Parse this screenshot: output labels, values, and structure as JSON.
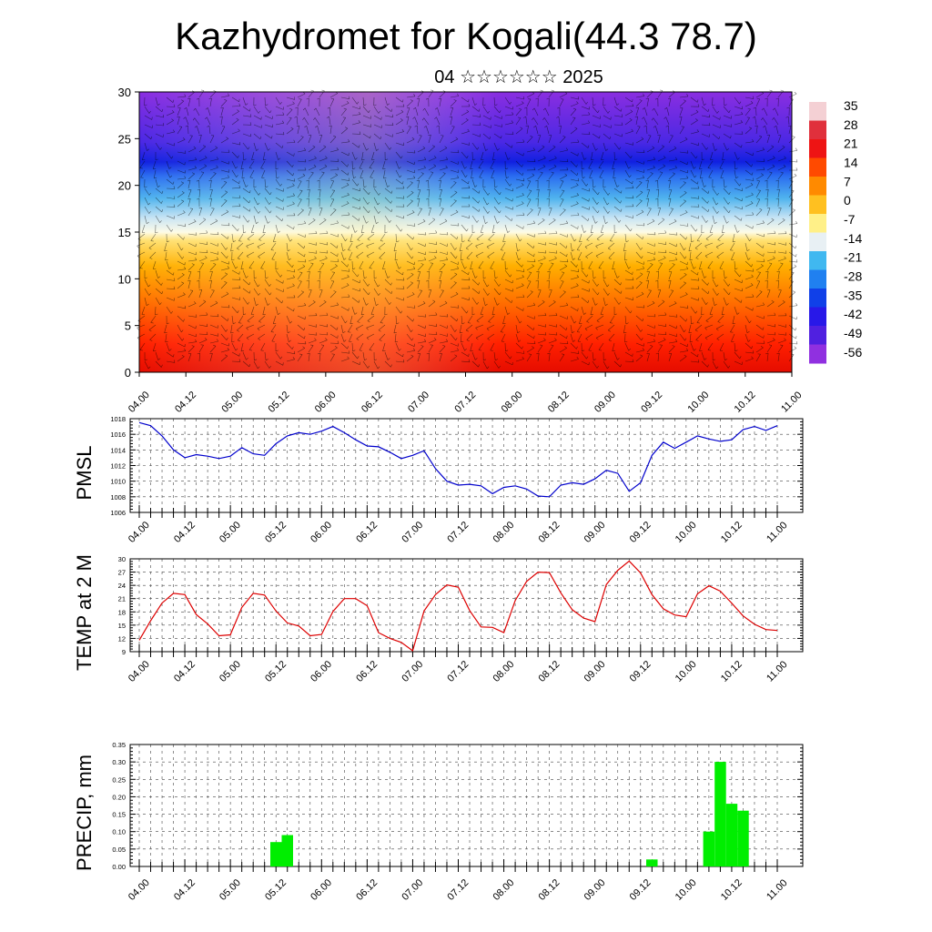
{
  "header": {
    "title": "Kazhydromet for Kogali(44.3 78.7)",
    "subtitle": "04 ☆☆☆☆☆☆ 2025"
  },
  "time_labels": [
    "04.00",
    "04.12",
    "05.00",
    "05.12",
    "06.00",
    "06.12",
    "07.00",
    "07.12",
    "08.00",
    "08.12",
    "09.00",
    "09.12",
    "10.00",
    "10.12",
    "11.00"
  ],
  "colors": {
    "pmsl_line": "#0000cc",
    "temp_line": "#dd0000",
    "precip_bar": "#00ee00"
  },
  "chart_data": [
    {
      "type": "heatmap",
      "title": "",
      "ylabel": "",
      "ylim": [
        0,
        30
      ],
      "yticks": [
        "0",
        "5",
        "10",
        "15",
        "20",
        "25",
        "30"
      ],
      "colorbar": {
        "labels": [
          "35",
          "28",
          "21",
          "14",
          "7",
          "0",
          "-7",
          "-14",
          "-21",
          "-28",
          "-35",
          "-42",
          "-49",
          "-56"
        ],
        "colors": [
          "#f4d0d4",
          "#e0303c",
          "#ee1414",
          "#ff4a00",
          "#ff8a00",
          "#ffc020",
          "#fff088",
          "#e8f0f4",
          "#40b8f0",
          "#2080f0",
          "#1040e8",
          "#2818e8",
          "#5020e0",
          "#9030e0"
        ]
      },
      "wind_barbs": true
    },
    {
      "type": "line",
      "ylabel": "PMSL",
      "ylim": [
        1006,
        1018
      ],
      "yticks": [
        "1006",
        "1008",
        "1010",
        "1012",
        "1014",
        "1016",
        "1018"
      ],
      "x_step_hours": 3,
      "series": [
        {
          "values": [
            1017.5,
            1017.1,
            1015.8,
            1014.0,
            1013.0,
            1013.4,
            1013.2,
            1012.9,
            1013.2,
            1014.3,
            1013.5,
            1013.3,
            1014.8,
            1015.8,
            1016.2,
            1016.0,
            1016.4,
            1017.0,
            1016.2,
            1015.3,
            1014.5,
            1014.4,
            1013.7,
            1012.9,
            1013.3,
            1013.9,
            1011.6,
            1010.0,
            1009.5,
            1009.6,
            1009.4,
            1008.4,
            1009.2,
            1009.4,
            1009.0,
            1008.1,
            1008.0,
            1009.5,
            1009.8,
            1009.6,
            1010.3,
            1011.4,
            1011.0,
            1008.7,
            1009.8,
            1013.3,
            1015.0,
            1014.2,
            1015.0,
            1015.8,
            1015.4,
            1015.1,
            1015.3,
            1016.6,
            1017.0,
            1016.5,
            1017.1
          ]
        }
      ]
    },
    {
      "type": "line",
      "ylabel": "TEMP at 2 M",
      "ylim": [
        9,
        30
      ],
      "yticks": [
        "9",
        "12",
        "15",
        "18",
        "21",
        "24",
        "27",
        "30"
      ],
      "x_step_hours": 3,
      "series": [
        {
          "values": [
            11.6,
            16.0,
            20.0,
            22.2,
            21.9,
            17.4,
            15.3,
            12.6,
            12.8,
            19.0,
            22.2,
            21.8,
            18.2,
            15.5,
            14.8,
            12.6,
            12.9,
            18.1,
            21.0,
            21.0,
            19.4,
            13.3,
            12.0,
            11.1,
            9.2,
            18.2,
            21.9,
            24.1,
            23.6,
            18.3,
            14.6,
            14.5,
            13.3,
            20.6,
            24.9,
            27.0,
            26.9,
            22.3,
            18.5,
            16.6,
            15.8,
            24.2,
            27.4,
            29.5,
            26.8,
            21.9,
            18.7,
            17.3,
            16.9,
            22.1,
            23.9,
            22.7,
            20.0,
            17.1,
            15.2,
            14.0,
            13.8
          ]
        }
      ]
    },
    {
      "type": "bar",
      "ylabel": "PRECIP, mm",
      "ylim": [
        0,
        0.35
      ],
      "yticks": [
        "0.00",
        "0.05",
        "0.10",
        "0.15",
        "0.20",
        "0.25",
        "0.30",
        "0.35"
      ],
      "x_step_hours": 3,
      "bars": [
        {
          "x_hours": 36,
          "value": 0.07
        },
        {
          "x_hours": 39,
          "value": 0.09
        },
        {
          "x_hours": 135,
          "value": 0.02
        },
        {
          "x_hours": 150,
          "value": 0.1
        },
        {
          "x_hours": 153,
          "value": 0.3
        },
        {
          "x_hours": 156,
          "value": 0.18
        },
        {
          "x_hours": 159,
          "value": 0.16
        }
      ]
    }
  ]
}
